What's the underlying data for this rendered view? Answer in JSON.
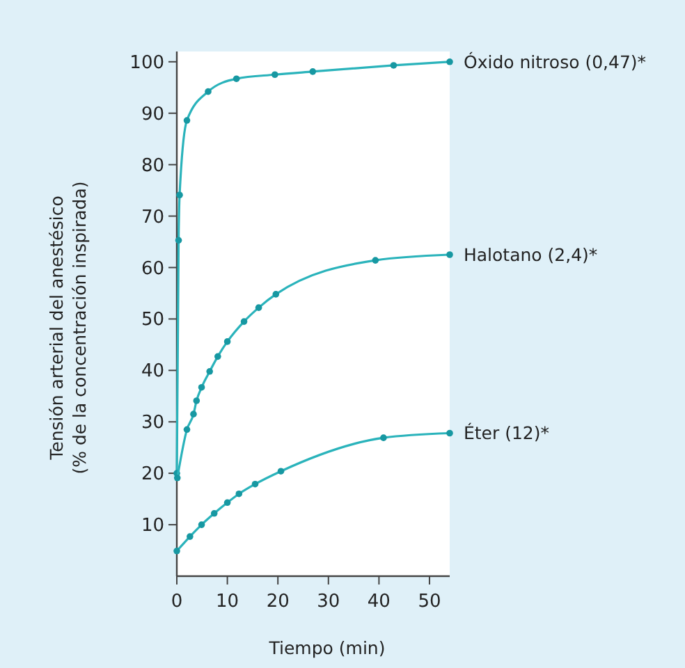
{
  "chart_data": {
    "type": "line",
    "xlabel": "Tiempo (min)",
    "ylabel": "Tensión arterial del anestésico\n(% de la concentración inspirada)",
    "xlim": [
      0,
      54
    ],
    "ylim": [
      0,
      102
    ],
    "xticks": [
      0,
      10,
      20,
      30,
      40,
      50
    ],
    "yticks": [
      10,
      20,
      30,
      40,
      50,
      60,
      70,
      80,
      90,
      100
    ],
    "grid": false,
    "legend": false,
    "marker": "circle",
    "line_style": "solid",
    "series": [
      {
        "name": "Óxido nitroso (0,47)*",
        "color": "#2ab3bb",
        "x": [
          0,
          0.35,
          0.55,
          2.0,
          6.2,
          11.8,
          19.4,
          26.9,
          42.9,
          54
        ],
        "values": [
          20,
          65.3,
          74.1,
          88.6,
          94.2,
          96.7,
          97.5,
          98.1,
          99.3,
          100
        ]
      },
      {
        "name": "Halotano (2,4)*",
        "color": "#2ab3bb",
        "x": [
          0.1,
          2.0,
          3.3,
          3.9,
          4.9,
          6.5,
          8.1,
          10.0,
          13.3,
          16.2,
          19.6,
          39.3,
          54
        ],
        "values": [
          19.1,
          28.5,
          31.5,
          34.1,
          36.7,
          39.8,
          42.7,
          45.6,
          49.5,
          52.2,
          54.8,
          61.4,
          62.5
        ]
      },
      {
        "name": "Éter (12)*",
        "color": "#2ab3bb",
        "x": [
          0,
          2.6,
          4.9,
          7.4,
          10.0,
          12.3,
          15.5,
          20.6,
          40.9,
          54
        ],
        "values": [
          4.9,
          7.7,
          10.0,
          12.2,
          14.3,
          16.0,
          17.9,
          20.4,
          26.9,
          27.8
        ]
      }
    ]
  }
}
